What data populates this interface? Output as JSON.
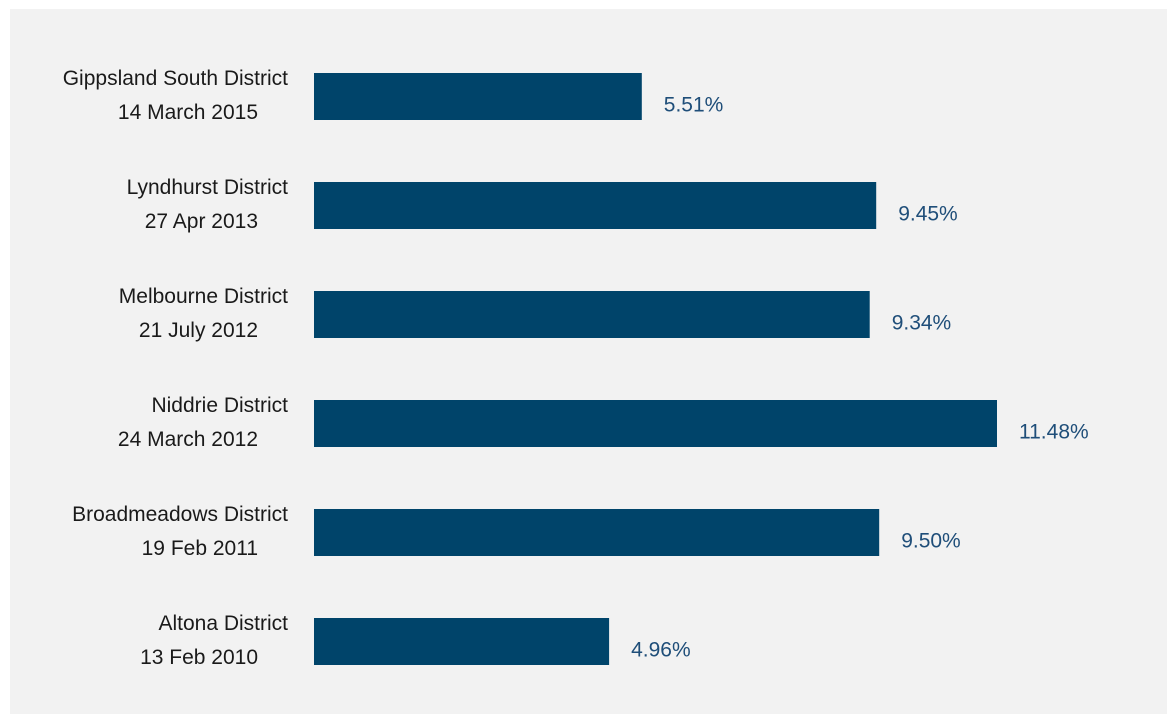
{
  "chart_data": {
    "type": "bar",
    "orientation": "horizontal",
    "categories": [
      [
        "Gippsland South District",
        "14 March 2015"
      ],
      [
        "Lyndhurst District",
        "27 Apr 2013"
      ],
      [
        "Melbourne District",
        "21 July 2012"
      ],
      [
        "Niddrie District",
        "24 March 2012"
      ],
      [
        "Broadmeadows District",
        "19 Feb 2011"
      ],
      [
        "Altona District",
        "13 Feb 2010"
      ]
    ],
    "values": [
      5.51,
      9.45,
      9.34,
      11.48,
      9.5,
      4.96
    ],
    "value_labels": [
      "5.51%",
      "9.45%",
      "9.34%",
      "11.48%",
      "9.50%",
      "4.96%"
    ],
    "title": "",
    "xlabel": "",
    "ylabel": "",
    "xlim": [
      0,
      11.48
    ],
    "grid": false,
    "legend": "none",
    "colors": {
      "bar": "#00446a",
      "value_label": "#1f4e79",
      "category_label": "#1a1a1a",
      "panel_background": "#f2f2f2"
    }
  }
}
